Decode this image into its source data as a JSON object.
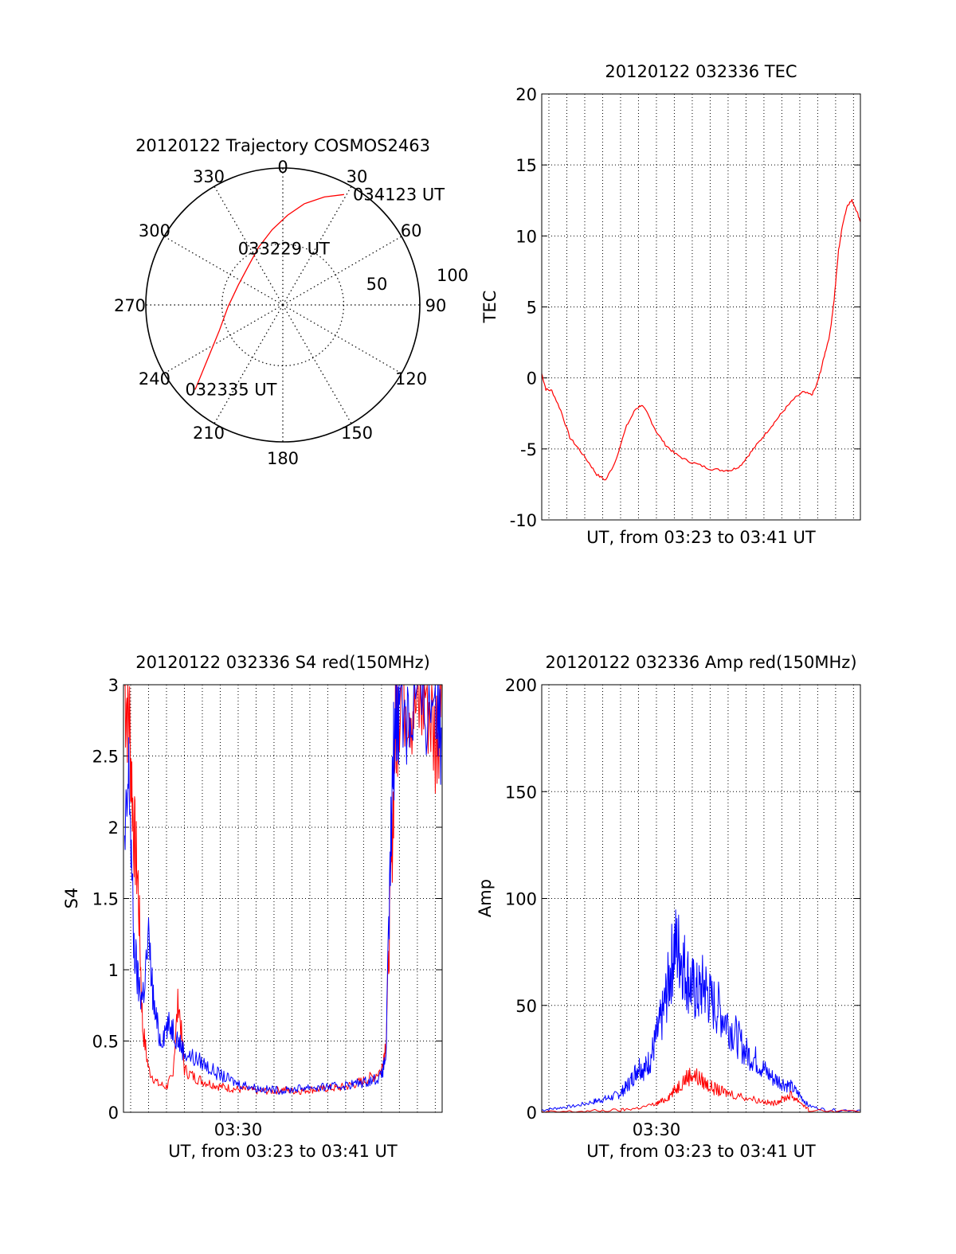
{
  "colors": {
    "red": "#ff0000",
    "blue": "#0000ff",
    "grid": "#000000",
    "background": "#ffffff"
  },
  "chart_data": [
    {
      "type": "polar",
      "id": "trajectory",
      "title": "20120122 Trajectory COSMOS2463",
      "azimuth_labels": [
        "0",
        "30",
        "60",
        "90",
        "120",
        "150",
        "180",
        "210",
        "240",
        "270",
        "300",
        "330"
      ],
      "radius_labels": [
        "50",
        "100"
      ],
      "elevation_rings": [
        50
      ],
      "series": [
        {
          "color": "#ff0000",
          "points": [
            {
              "az": 226,
              "el": 10
            },
            {
              "az": 236,
              "el": 32
            },
            {
              "az": 248,
              "el": 45
            },
            {
              "az": 268,
              "el": 54
            },
            {
              "az": 294,
              "el": 58
            },
            {
              "az": 318,
              "el": 56
            },
            {
              "az": 337,
              "el": 49
            },
            {
              "az": 352,
              "el": 40
            },
            {
              "az": 3,
              "el": 31
            },
            {
              "az": 12,
              "el": 22
            },
            {
              "az": 21,
              "el": 14
            },
            {
              "az": 29,
              "el": 7
            }
          ]
        }
      ],
      "annotations": [
        {
          "text": "034123 UT",
          "az": 33,
          "el": 3
        },
        {
          "text": "033229 UT",
          "az": 357,
          "el": 53
        },
        {
          "text": "032335 UT",
          "az": 228,
          "el": 9
        }
      ]
    },
    {
      "type": "line",
      "id": "tec",
      "title": "20120122 032336 TEC",
      "ylabel": "TEC",
      "xlabel": "UT, from 03:23 to 03:41 UT",
      "xlim": [
        "03:23:36",
        "03:41:23"
      ],
      "ylim": [
        -10,
        20
      ],
      "yticks": [
        "-10",
        "-5",
        "0",
        "5",
        "10",
        "15",
        "20"
      ],
      "xticks": [],
      "grid": true,
      "series": [
        {
          "color": "#ff0000",
          "x": [
            "03:23:36",
            "03:23:50",
            "03:24:10",
            "03:24:40",
            "03:25:10",
            "03:25:40",
            "03:26:15",
            "03:26:40",
            "03:27:10",
            "03:27:40",
            "03:28:20",
            "03:28:50",
            "03:29:10",
            "03:29:30",
            "03:30:00",
            "03:30:30",
            "03:31:00",
            "03:31:40",
            "03:32:20",
            "03:33:00",
            "03:33:40",
            "03:34:10",
            "03:34:40",
            "03:35:10",
            "03:35:40",
            "03:36:10",
            "03:36:40",
            "03:37:10",
            "03:37:40",
            "03:38:10",
            "03:38:40",
            "03:38:55",
            "03:39:10",
            "03:39:25",
            "03:39:40",
            "03:39:55",
            "03:40:10",
            "03:40:25",
            "03:40:40",
            "03:40:55",
            "03:41:10",
            "03:41:23"
          ],
          "y": [
            0.3,
            -0.8,
            -0.9,
            -2.3,
            -4.2,
            -5.0,
            -6.0,
            -6.8,
            -7.2,
            -6.0,
            -3.4,
            -2.2,
            -1.9,
            -2.5,
            -3.8,
            -4.7,
            -5.3,
            -5.8,
            -6.1,
            -6.4,
            -6.5,
            -6.5,
            -6.2,
            -5.4,
            -4.6,
            -3.8,
            -3.0,
            -2.2,
            -1.5,
            -1.0,
            -1.2,
            -0.6,
            0.5,
            1.8,
            3.0,
            5.5,
            9.0,
            11.0,
            12.2,
            12.5,
            11.8,
            11.0
          ]
        }
      ]
    },
    {
      "type": "line",
      "id": "s4",
      "title": "20120122 032336 S4 red(150MHz)",
      "ylabel": "S4",
      "xlabel": "UT, from 03:23 to 03:41 UT",
      "xlim": [
        "03:23:36",
        "03:41:23"
      ],
      "ylim": [
        0,
        3
      ],
      "yticks": [
        "0",
        "0.5",
        "1",
        "1.5",
        "2",
        "2.5",
        "3"
      ],
      "xticks": [
        "03:30"
      ],
      "grid": true,
      "series": [
        {
          "color": "#ff0000",
          "x": [
            "03:23:40",
            "03:23:55",
            "03:24:10",
            "03:24:25",
            "03:24:40",
            "03:25:00",
            "03:25:30",
            "03:26:00",
            "03:26:20",
            "03:26:40",
            "03:27:00",
            "03:27:30",
            "03:28:00",
            "03:28:30",
            "03:29:00",
            "03:29:30",
            "03:30:00",
            "03:30:30",
            "03:31:00",
            "03:31:30",
            "03:32:00",
            "03:32:30",
            "03:33:00",
            "03:33:30",
            "03:34:00",
            "03:34:30",
            "03:35:00",
            "03:35:30",
            "03:36:00",
            "03:36:30",
            "03:37:00",
            "03:37:30",
            "03:38:00",
            "03:38:15",
            "03:38:30",
            "03:38:45",
            "03:39:00",
            "03:39:30",
            "03:40:00",
            "03:40:30",
            "03:41:00",
            "03:41:20"
          ],
          "y": [
            3.0,
            2.8,
            2.0,
            1.6,
            0.6,
            0.3,
            0.2,
            0.18,
            0.25,
            0.8,
            0.3,
            0.25,
            0.22,
            0.2,
            0.18,
            0.17,
            0.16,
            0.16,
            0.15,
            0.15,
            0.15,
            0.16,
            0.15,
            0.15,
            0.16,
            0.16,
            0.17,
            0.17,
            0.18,
            0.2,
            0.22,
            0.25,
            0.3,
            0.5,
            1.5,
            2.6,
            3.0,
            3.0,
            2.8,
            3.0,
            2.6,
            3.0
          ]
        },
        {
          "color": "#0000ff",
          "x": [
            "03:23:40",
            "03:23:55",
            "03:24:10",
            "03:24:25",
            "03:24:40",
            "03:25:00",
            "03:25:20",
            "03:25:40",
            "03:26:00",
            "03:26:20",
            "03:26:40",
            "03:27:00",
            "03:27:30",
            "03:28:00",
            "03:28:30",
            "03:29:00",
            "03:29:30",
            "03:30:00",
            "03:30:30",
            "03:31:00",
            "03:31:30",
            "03:32:00",
            "03:32:30",
            "03:33:00",
            "03:33:30",
            "03:34:00",
            "03:34:30",
            "03:35:00",
            "03:35:30",
            "03:36:00",
            "03:36:30",
            "03:37:00",
            "03:37:30",
            "03:38:00",
            "03:38:15",
            "03:38:30",
            "03:38:45",
            "03:39:00",
            "03:39:30",
            "03:40:00",
            "03:40:30",
            "03:41:00",
            "03:41:20"
          ],
          "y": [
            1.8,
            2.4,
            1.2,
            0.9,
            0.8,
            1.2,
            0.7,
            0.5,
            0.6,
            0.6,
            0.5,
            0.42,
            0.38,
            0.35,
            0.3,
            0.26,
            0.23,
            0.2,
            0.19,
            0.17,
            0.16,
            0.16,
            0.15,
            0.16,
            0.17,
            0.18,
            0.17,
            0.18,
            0.18,
            0.19,
            0.2,
            0.21,
            0.23,
            0.25,
            0.4,
            1.8,
            2.8,
            3.0,
            2.8,
            3.0,
            2.9,
            3.0,
            2.7
          ]
        }
      ]
    },
    {
      "type": "line",
      "id": "amp",
      "title": "20120122 032336 Amp red(150MHz)",
      "ylabel": "Amp",
      "xlabel": "UT, from 03:23 to 03:41 UT",
      "xlim": [
        "03:23:36",
        "03:41:23"
      ],
      "ylim": [
        0,
        200
      ],
      "yticks": [
        "0",
        "50",
        "100",
        "150",
        "200"
      ],
      "xticks": [
        "03:30"
      ],
      "grid": true,
      "series": [
        {
          "color": "#0000ff",
          "x": [
            "03:23:36",
            "03:24:30",
            "03:25:30",
            "03:26:30",
            "03:27:00",
            "03:27:30",
            "03:28:00",
            "03:28:20",
            "03:28:40",
            "03:29:00",
            "03:29:20",
            "03:29:40",
            "03:30:00",
            "03:30:20",
            "03:30:40",
            "03:31:00",
            "03:31:20",
            "03:31:40",
            "03:32:00",
            "03:32:20",
            "03:32:40",
            "03:33:00",
            "03:33:30",
            "03:34:00",
            "03:34:30",
            "03:35:00",
            "03:35:30",
            "03:36:00",
            "03:36:30",
            "03:37:00",
            "03:37:30",
            "03:38:00",
            "03:38:30",
            "03:39:30",
            "03:41:23"
          ],
          "y": [
            1,
            2,
            3,
            5,
            6,
            7,
            9,
            12,
            16,
            22,
            20,
            25,
            35,
            45,
            60,
            78,
            75,
            65,
            58,
            55,
            60,
            52,
            48,
            42,
            35,
            28,
            25,
            20,
            16,
            14,
            12,
            8,
            3,
            1,
            1
          ]
        },
        {
          "color": "#ff0000",
          "x": [
            "03:23:36",
            "03:26:00",
            "03:28:00",
            "03:29:00",
            "03:30:00",
            "03:30:30",
            "03:31:00",
            "03:31:30",
            "03:32:00",
            "03:32:30",
            "03:33:00",
            "03:33:30",
            "03:34:00",
            "03:35:00",
            "03:36:00",
            "03:36:30",
            "03:37:00",
            "03:37:30",
            "03:38:00",
            "03:38:30",
            "03:41:23"
          ],
          "y": [
            0,
            0.5,
            1,
            2,
            4,
            6,
            10,
            15,
            18,
            15,
            12,
            10,
            9,
            7,
            5,
            4,
            6,
            8,
            5,
            1,
            0
          ]
        }
      ]
    }
  ]
}
